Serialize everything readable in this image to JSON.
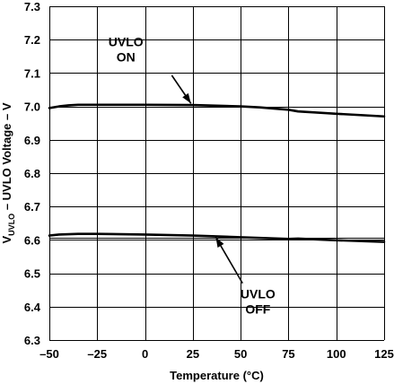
{
  "chart_data": {
    "type": "line",
    "title": "",
    "xlabel": "Temperature (°C)",
    "ylabel": {
      "main": "V",
      "subscript": "UVLO",
      "rest": " – UVLO Voltage – V"
    },
    "xlim": [
      -50,
      125
    ],
    "ylim": [
      6.3,
      7.3
    ],
    "x_ticks": [
      -50,
      -25,
      0,
      25,
      50,
      75,
      100,
      125
    ],
    "x_tick_labels": [
      "–50",
      "–25",
      "0",
      "25",
      "50",
      "75",
      "100",
      "125"
    ],
    "y_ticks": [
      6.3,
      6.4,
      6.5,
      6.6,
      6.7,
      6.8,
      6.9,
      7.0,
      7.1,
      7.2,
      7.3
    ],
    "y_tick_labels": [
      "6.3",
      "6.4",
      "6.5",
      "6.6",
      "6.7",
      "6.8",
      "6.9",
      "7.0",
      "7.1",
      "7.2",
      "7.3"
    ],
    "grid": true,
    "series": [
      {
        "x": [
          -50,
          -45,
          -40,
          -35,
          -25,
          0,
          25,
          50,
          60,
          75,
          80,
          100,
          125
        ],
        "y": [
          6.995,
          7.0,
          7.003,
          7.005,
          7.005,
          7.005,
          7.004,
          7.0,
          6.997,
          6.99,
          6.985,
          6.978,
          6.97
        ]
      },
      {
        "x": [
          -50,
          -45,
          -40,
          -35,
          -25,
          0,
          25,
          50,
          75,
          80,
          100,
          125
        ],
        "y": [
          6.613,
          6.616,
          6.617,
          6.618,
          6.618,
          6.616,
          6.613,
          6.608,
          6.603,
          6.604,
          6.599,
          6.594
        ]
      }
    ],
    "reference_line": {
      "y": 6.605
    },
    "annotations": [
      {
        "lines": [
          "UVLO",
          "ON"
        ],
        "text_at": [
          -10,
          7.18
        ],
        "arrow_from": [
          14,
          7.093
        ],
        "arrow_to": [
          24,
          7.009
        ]
      },
      {
        "lines": [
          "UVLO",
          "OFF"
        ],
        "text_at": [
          59,
          6.425
        ],
        "arrow_from": [
          51,
          6.47
        ],
        "arrow_to": [
          37,
          6.608
        ]
      }
    ]
  }
}
